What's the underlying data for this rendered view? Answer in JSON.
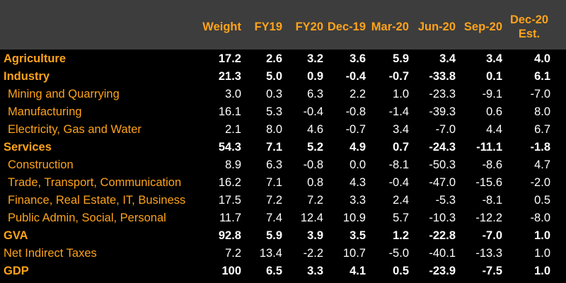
{
  "table": {
    "columns": [
      "Weight",
      "FY19",
      "FY20",
      "Dec-19",
      "Mar-20",
      "Jun-20",
      "Sep-20",
      "Dec-20\nEst."
    ],
    "rows": [
      {
        "label": "Agriculture",
        "style": "main",
        "values": [
          "17.2",
          "2.6",
          "3.2",
          "3.6",
          "5.9",
          "3.4",
          "3.4",
          "4.0"
        ]
      },
      {
        "label": "Industry",
        "style": "main",
        "values": [
          "21.3",
          "5.0",
          "0.9",
          "-0.4",
          "-0.7",
          "-33.8",
          "0.1",
          "6.1"
        ]
      },
      {
        "label": "Mining and Quarrying",
        "style": "sub",
        "values": [
          "3.0",
          "0.3",
          "6.3",
          "2.2",
          "1.0",
          "-23.3",
          "-9.1",
          "-7.0"
        ]
      },
      {
        "label": "Manufacturing",
        "style": "sub",
        "values": [
          "16.1",
          "5.3",
          "-0.4",
          "-0.8",
          "-1.4",
          "-39.3",
          "0.6",
          "8.0"
        ]
      },
      {
        "label": "Electricity, Gas and Water",
        "style": "sub",
        "values": [
          "2.1",
          "8.0",
          "4.6",
          "-0.7",
          "3.4",
          "-7.0",
          "4.4",
          "6.7"
        ]
      },
      {
        "label": "Services",
        "style": "main",
        "values": [
          "54.3",
          "7.1",
          "5.2",
          "4.9",
          "0.7",
          "-24.3",
          "-11.1",
          "-1.8"
        ]
      },
      {
        "label": "Construction",
        "style": "sub",
        "values": [
          "8.9",
          "6.3",
          "-0.8",
          "0.0",
          "-8.1",
          "-50.3",
          "-8.6",
          "4.7"
        ]
      },
      {
        "label": "Trade, Transport, Communication",
        "style": "sub",
        "values": [
          "16.2",
          "7.1",
          "0.8",
          "4.3",
          "-0.4",
          "-47.0",
          "-15.6",
          "-2.0"
        ]
      },
      {
        "label": "Finance, Real Estate, IT, Business",
        "style": "sub",
        "values": [
          "17.5",
          "7.2",
          "7.2",
          "3.3",
          "2.4",
          "-5.3",
          "-8.1",
          "0.5"
        ]
      },
      {
        "label": "Public Admin, Social, Personal",
        "style": "sub",
        "values": [
          "11.7",
          "7.4",
          "12.4",
          "10.9",
          "5.7",
          "-10.3",
          "-12.2",
          "-8.0"
        ]
      },
      {
        "label": "GVA",
        "style": "main",
        "values": [
          "92.8",
          "5.9",
          "3.9",
          "3.5",
          "1.2",
          "-22.8",
          "-7.0",
          "1.0"
        ]
      },
      {
        "label": "Net Indirect Taxes",
        "style": "plain",
        "values": [
          "7.2",
          "13.4",
          "-2.2",
          "10.7",
          "-5.0",
          "-40.1",
          "-13.3",
          "1.0"
        ]
      },
      {
        "label": "GDP",
        "style": "main",
        "values": [
          "100",
          "6.5",
          "3.3",
          "4.1",
          "0.5",
          "-23.9",
          "-7.5",
          "1.0"
        ]
      }
    ]
  }
}
